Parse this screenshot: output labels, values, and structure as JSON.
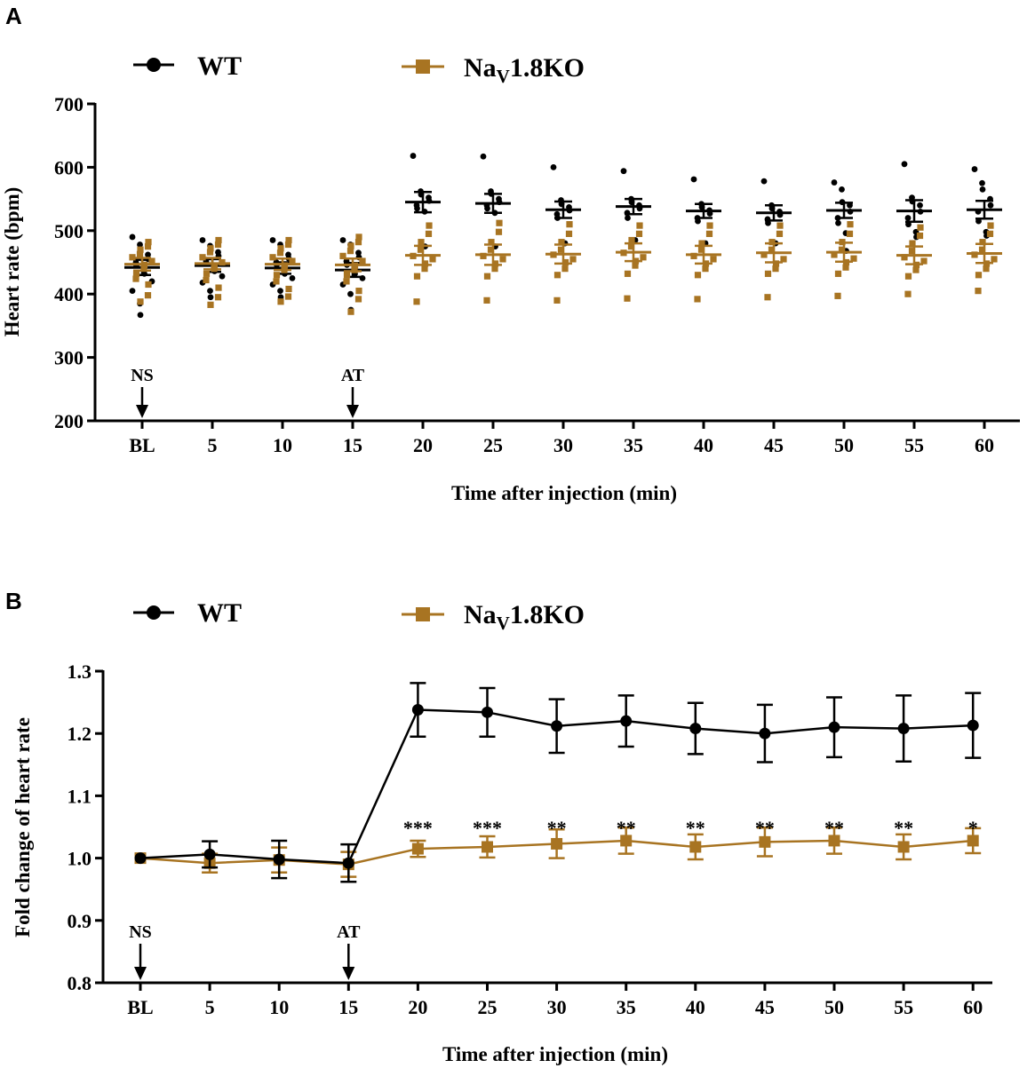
{
  "colors": {
    "wt": "#000000",
    "ko": "#a87422",
    "axis": "#000000"
  },
  "panels": [
    {
      "letter": "A",
      "legend": [
        {
          "series": "wt",
          "label": "WT",
          "marker": "circle"
        },
        {
          "series": "ko",
          "label": "Na",
          "sub": "V",
          "label_after": "1.8KO",
          "marker": "square"
        }
      ]
    },
    {
      "letter": "B",
      "legend": [
        {
          "series": "wt",
          "label": "WT",
          "marker": "circle"
        },
        {
          "series": "ko",
          "label": "Na",
          "sub": "V",
          "label_after": "1.8KO",
          "marker": "square"
        }
      ]
    }
  ],
  "chart_data": [
    {
      "type": "scatter",
      "title": "",
      "xlabel": "Time after injection (min)",
      "ylabel": "Heart rate (bpm)",
      "categories": [
        "BL",
        "5",
        "10",
        "15",
        "20",
        "25",
        "30",
        "35",
        "40",
        "45",
        "50",
        "55",
        "60"
      ],
      "ylim": [
        200,
        700
      ],
      "yticks": [
        200,
        300,
        400,
        500,
        600,
        700
      ],
      "annotations": [
        {
          "category": "BL",
          "label": "NS"
        },
        {
          "category": "15",
          "label": "AT"
        }
      ],
      "series": [
        {
          "name": "WT",
          "color_key": "wt",
          "marker": "circle",
          "mean": [
            442,
            445,
            441,
            438,
            545,
            543,
            533,
            538,
            531,
            528,
            532,
            531,
            533
          ],
          "sem": [
            12,
            10,
            9,
            11,
            16,
            15,
            13,
            12,
            11,
            12,
            12,
            17,
            14
          ],
          "points": [
            [
              490,
              478,
              470,
              462,
              455,
              450,
              445,
              440,
              432,
              420,
              405,
              385,
              367
            ],
            [
              485,
              476,
              472,
              466,
              460,
              452,
              448,
              442,
              436,
              428,
              418,
              405,
              395
            ],
            [
              485,
              478,
              470,
              462,
              456,
              450,
              446,
              440,
              432,
              425,
              415,
              405,
              395
            ],
            [
              485,
              478,
              472,
              465,
              458,
              452,
              446,
              440,
              432,
              425,
              415,
              400,
              375
            ],
            [
              618,
              562,
              557,
              552,
              547,
              540,
              535,
              530,
              475
            ],
            [
              617,
              562,
              558,
              550,
              545,
              540,
              535,
              528,
              475
            ],
            [
              600,
              548,
              542,
              537,
              532,
              526,
              520,
              480
            ],
            [
              594,
              550,
              545,
              540,
              535,
              528,
              520,
              485
            ],
            [
              581,
              542,
              537,
              532,
              527,
              520,
              515,
              480
            ],
            [
              578,
              540,
              535,
              530,
              525,
              518,
              512,
              480
            ],
            [
              576,
              565,
              545,
              540,
              530,
              520,
              512,
              496,
              468
            ],
            [
              605,
              552,
              546,
              540,
              530,
              520,
              510,
              498,
              490
            ],
            [
              597,
              575,
              565,
              550,
              540,
              530,
              515,
              498,
              492
            ]
          ]
        },
        {
          "name": "NaV1.8KO",
          "color_key": "ko",
          "marker": "square",
          "mean": [
            447,
            448,
            447,
            446,
            461,
            462,
            463,
            466,
            462,
            465,
            466,
            461,
            464
          ],
          "sem": [
            10,
            9,
            9,
            10,
            15,
            16,
            15,
            14,
            14,
            15,
            15,
            14,
            15
          ],
          "points": [
            [
              482,
              475,
              470,
              463,
              458,
              452,
              446,
              440,
              432,
              424,
              415,
              398,
              388
            ],
            [
              485,
              478,
              472,
              466,
              458,
              450,
              445,
              440,
              432,
              422,
              410,
              395,
              383
            ],
            [
              485,
              478,
              472,
              465,
              458,
              452,
              445,
              438,
              430,
              420,
              408,
              396,
              388
            ],
            [
              490,
              482,
              476,
              468,
              460,
              452,
              445,
              438,
              430,
              420,
              405,
              392,
              372
            ],
            [
              508,
              495,
              482,
              470,
              460,
              455,
              448,
              440,
              428,
              388
            ],
            [
              512,
              498,
              482,
              470,
              460,
              455,
              448,
              440,
              428,
              390
            ],
            [
              510,
              495,
              482,
              470,
              462,
              455,
              450,
              440,
              430,
              390
            ],
            [
              508,
              495,
              485,
              475,
              465,
              458,
              452,
              445,
              432,
              393
            ],
            [
              508,
              495,
              480,
              470,
              460,
              455,
              448,
              440,
              430,
              392
            ],
            [
              508,
              495,
              482,
              470,
              462,
              455,
              448,
              440,
              432,
              395
            ],
            [
              510,
              495,
              482,
              470,
              462,
              456,
              450,
              442,
              432,
              397
            ],
            [
              505,
              492,
              480,
              468,
              458,
              452,
              446,
              438,
              428,
              400
            ],
            [
              508,
              495,
              482,
              470,
              462,
              455,
              448,
              440,
              430,
              405
            ]
          ]
        }
      ]
    },
    {
      "type": "line",
      "title": "",
      "xlabel": "Time after injection (min)",
      "ylabel": "Fold change of heart rate",
      "categories": [
        "BL",
        "5",
        "10",
        "15",
        "20",
        "25",
        "30",
        "35",
        "40",
        "45",
        "50",
        "55",
        "60"
      ],
      "ylim": [
        0.8,
        1.3
      ],
      "yticks": [
        "0.8",
        "0.9",
        "1.0",
        "1.1",
        "1.2",
        "1.3"
      ],
      "annotations": [
        {
          "category": "BL",
          "label": "NS"
        },
        {
          "category": "15",
          "label": "AT"
        }
      ],
      "significance": [
        "",
        "",
        "",
        "",
        "***",
        "***",
        "**",
        "**",
        "**",
        "**",
        "**",
        "**",
        "*"
      ],
      "series": [
        {
          "name": "WT",
          "color_key": "wt",
          "marker": "circle",
          "values": [
            1.0,
            1.006,
            0.998,
            0.992,
            1.238,
            1.234,
            1.212,
            1.22,
            1.208,
            1.2,
            1.21,
            1.208,
            1.213
          ],
          "errors": [
            0.0,
            0.021,
            0.03,
            0.03,
            0.043,
            0.039,
            0.043,
            0.041,
            0.041,
            0.046,
            0.048,
            0.053,
            0.052
          ]
        },
        {
          "name": "NaV1.8KO",
          "color_key": "ko",
          "marker": "square",
          "values": [
            1.0,
            0.992,
            0.997,
            0.99,
            1.015,
            1.018,
            1.023,
            1.028,
            1.018,
            1.026,
            1.028,
            1.018,
            1.028
          ],
          "errors": [
            0.0,
            0.015,
            0.02,
            0.02,
            0.013,
            0.017,
            0.023,
            0.021,
            0.02,
            0.023,
            0.021,
            0.02,
            0.02
          ]
        }
      ]
    }
  ]
}
